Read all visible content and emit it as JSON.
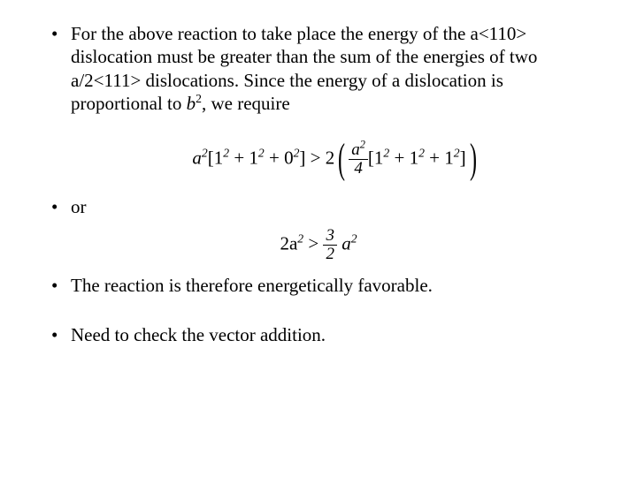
{
  "bullets": {
    "b1": "For the above reaction to take place the energy of the a<110>  dislocation must be greater than the sum of the energies of two a/2<111> dislocations.  Since the energy of a dislocation is proportional to ",
    "b1_tail": ", we require",
    "b1_var": "b",
    "b1_exp": "2",
    "b2": "or",
    "b3": "The reaction is therefore energetically favorable.",
    "b4": "Need to check the vector addition."
  },
  "formula1": {
    "lhs_a": "a",
    "lhs_exp": "2",
    "lhs_bracket": "[1",
    "lhs_e2": "2",
    "lhs_plus1": " + 1",
    "lhs_e3": "2",
    "lhs_plus2": " + 0",
    "lhs_e4": "2",
    "lhs_close": "] > 2",
    "frac_num": "a",
    "frac_num_exp": "2",
    "frac_den": "4",
    "rhs_bracket": "[1",
    "rhs_e1": "2",
    "rhs_plus1": " + 1",
    "rhs_e2": "2",
    "rhs_plus2": " + 1",
    "rhs_e3": "2",
    "rhs_close": "]"
  },
  "formula2": {
    "lhs": "2a",
    "lhs_exp": "2",
    "gt": " > ",
    "frac_num": "3",
    "frac_den": "2",
    "rhs": "a",
    "rhs_exp": "2"
  },
  "style": {
    "bg": "#ffffff",
    "fg": "#000000",
    "font": "Times New Roman",
    "fontsize_pt": 16
  }
}
